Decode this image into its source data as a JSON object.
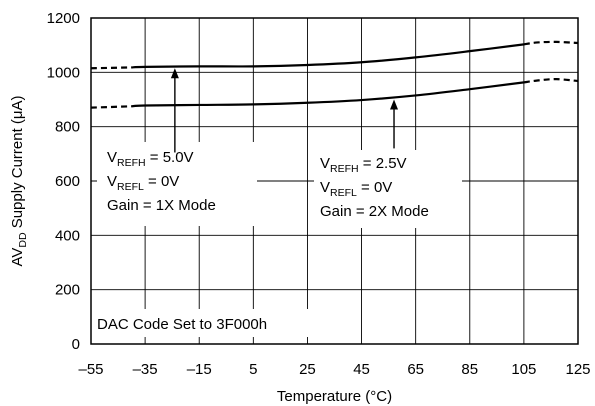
{
  "chart_data": {
    "type": "line",
    "xlabel": "Temperature (°C)",
    "ylabel": {
      "main": "AV",
      "sub": "DD",
      "rest": " Supply Current (μA)"
    },
    "xlim": [
      -55,
      125
    ],
    "ylim": [
      0,
      1200
    ],
    "x_ticks": [
      -55,
      -35,
      -15,
      5,
      25,
      45,
      65,
      85,
      105,
      125
    ],
    "y_ticks": [
      0,
      200,
      400,
      600,
      800,
      1000,
      1200
    ],
    "x_tick_labels": [
      "–55",
      "–35",
      "–15",
      "5",
      "25",
      "45",
      "65",
      "85",
      "105",
      "125"
    ],
    "y_tick_labels": [
      "0",
      "200",
      "400",
      "600",
      "800",
      "1000",
      "1200"
    ],
    "grid": true,
    "series": [
      {
        "x": [
          -55,
          -40,
          -35,
          -15,
          5,
          25,
          45,
          65,
          85,
          105,
          110,
          117,
          125
        ],
        "y": [
          1015,
          1018,
          1020,
          1022,
          1022,
          1027,
          1037,
          1055,
          1078,
          1103,
          1110,
          1112,
          1108
        ],
        "dashed_x_ranges": [
          [
            -55,
            -40
          ],
          [
            105,
            125
          ]
        ]
      },
      {
        "x": [
          -55,
          -40,
          -35,
          -15,
          5,
          25,
          45,
          65,
          85,
          105,
          110,
          117,
          125
        ],
        "y": [
          870,
          875,
          878,
          880,
          882,
          888,
          898,
          915,
          938,
          963,
          970,
          975,
          968
        ],
        "dashed_x_ranges": [
          [
            -55,
            -40
          ],
          [
            105,
            125
          ]
        ]
      }
    ],
    "annotations": {
      "top_box": {
        "vrefh": {
          "main": "V",
          "sub": "REFH",
          "rest": " = 5.0V"
        },
        "vrefl": {
          "main": "V",
          "sub": "REFL",
          "rest": " = 0V"
        },
        "gain": "Gain = 1X Mode",
        "arrow_x": -24,
        "arrow_from_y": 705,
        "arrow_to_y": 1015
      },
      "bottom_box": {
        "vrefh": {
          "main": "V",
          "sub": "REFH",
          "rest": " = 2.5V"
        },
        "vrefl": {
          "main": "V",
          "sub": "REFL",
          "rest": " = 0V"
        },
        "gain": "Gain = 2X Mode",
        "arrow_x": 57,
        "arrow_from_y": 720,
        "arrow_to_y": 900
      },
      "note": "DAC Code Set to 3F000h"
    }
  }
}
